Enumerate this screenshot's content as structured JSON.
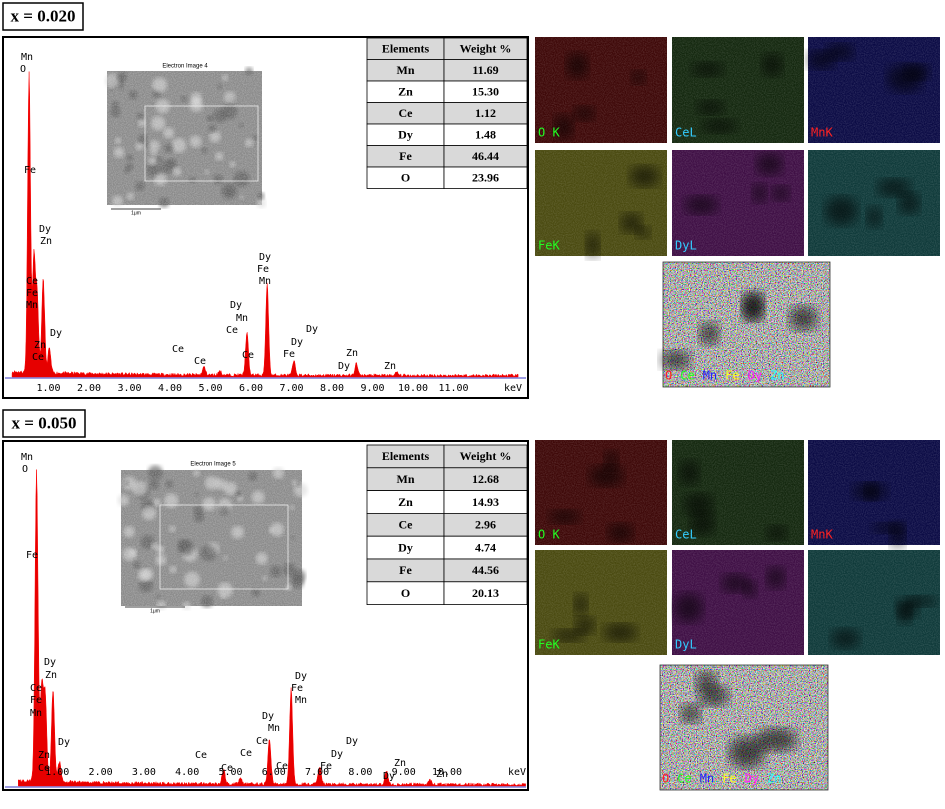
{
  "panels": [
    {
      "label": "x = 0.020",
      "image_title": "Electron Image 4",
      "scale_label": "1μm",
      "table": {
        "header": [
          "Elements",
          "Weight %"
        ],
        "rows": [
          [
            "Mn",
            "11.69"
          ],
          [
            "Zn",
            "15.30"
          ],
          [
            "Ce",
            "1.12"
          ],
          [
            "Dy",
            "1.48"
          ],
          [
            "Fe",
            "46.44"
          ],
          [
            "O",
            "23.96"
          ]
        ]
      },
      "xticks": [
        "1.00",
        "2.00",
        "3.00",
        "4.00",
        "5.00",
        "6.00",
        "7.00",
        "8.00",
        "9.00",
        "10.00",
        "11.00"
      ],
      "unit": "keV",
      "peak_labels": [
        "Mn",
        "O",
        "Fe",
        "Dy",
        "Zn",
        "Ce",
        "Fe",
        "Mn",
        "Dy",
        "Zn",
        "Ce",
        "Ce",
        "Ce",
        "Dy",
        "Mn",
        "Ce",
        "Ce",
        "Dy",
        "Fe",
        "Mn",
        "Dy",
        "Dy",
        "Fe",
        "Zn",
        "Dy",
        "Zn"
      ],
      "maps": [
        "O K",
        "CeL",
        "MnK",
        "FeK",
        "DyL"
      ],
      "overlay_legend": [
        "O",
        "Ce",
        "Mn",
        "Fe",
        "Dy",
        "Zn"
      ]
    },
    {
      "label": "x = 0.050",
      "image_title": "Electron Image 5",
      "scale_label": "1μm",
      "table": {
        "header": [
          "Elements",
          "Weight %"
        ],
        "rows": [
          [
            "Mn",
            "12.68"
          ],
          [
            "Zn",
            "14.93"
          ],
          [
            "Ce",
            "2.96"
          ],
          [
            "Dy",
            "4.74"
          ],
          [
            "Fe",
            "44.56"
          ],
          [
            "O",
            "20.13"
          ]
        ]
      },
      "xticks": [
        "1.00",
        "2.00",
        "3.00",
        "4.00",
        "5.00",
        "6.00",
        "7.00",
        "8.00",
        "9.00",
        "10.00"
      ],
      "unit": "keV",
      "peak_labels": [
        "Mn",
        "O",
        "Fe",
        "Dy",
        "Zn",
        "Ce",
        "Fe",
        "Mn",
        "Dy",
        "Zn",
        "Ce",
        "Ce",
        "Ce",
        "Dy",
        "Mn",
        "Ce",
        "Ce",
        "Dy",
        "Fe",
        "Mn",
        "Ce",
        "Dy",
        "Dy",
        "Fe",
        "Zn",
        "Dy",
        "Zn"
      ],
      "maps": [
        "O K",
        "CeL",
        "MnK",
        "FeK",
        "DyL"
      ],
      "overlay_legend": [
        "O",
        "Ce",
        "Mn",
        "Fe",
        "Dy",
        "Zn"
      ]
    }
  ]
}
